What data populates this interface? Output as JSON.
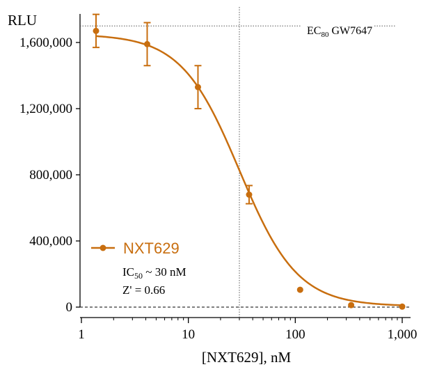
{
  "chart_data": {
    "type": "scatter",
    "xlabel": "[NXT629], nM",
    "ylabel": "RLU",
    "x_scale": "log",
    "xlim": [
      1,
      1000
    ],
    "ylim": [
      0,
      1720000
    ],
    "x_ticks": [
      1,
      10,
      100,
      1000
    ],
    "x_tick_labels": [
      "1",
      "10",
      "100",
      "1,000"
    ],
    "y_ticks": [
      0,
      400000,
      800000,
      1200000,
      1600000
    ],
    "y_tick_labels": [
      "0",
      "400,000",
      "800,000",
      "1,200,000",
      "1,600,000"
    ],
    "grid": false,
    "legend_position": "lower-left",
    "series": [
      {
        "name": "NXT629",
        "color": "#c86e0f",
        "x": [
          1.37,
          4.12,
          12.3,
          37.0,
          111,
          333,
          1000
        ],
        "y": [
          1670000,
          1590000,
          1330000,
          680000,
          105000,
          12000,
          3000
        ],
        "error": [
          100000,
          130000,
          130000,
          55000,
          0,
          0,
          0
        ]
      }
    ],
    "fit": {
      "type": "four-parameter logistic",
      "top": 1650000,
      "bottom": 5000,
      "ic50": 30,
      "hill": 1.6
    },
    "reference_lines": {
      "ec80": {
        "y": 1700000,
        "label_main": "EC",
        "label_sub": "80",
        "label_rest": " GW7647"
      },
      "ic50_x": 30,
      "zero_y": 0
    },
    "stats": {
      "ic50_main": "IC",
      "ic50_sub": "50",
      "ic50_rest": " ~ 30 nM",
      "z_prime": "Z' =  0.66"
    }
  }
}
